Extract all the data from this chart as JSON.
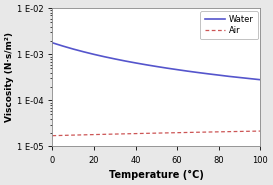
{
  "title": "",
  "xlabel": "Temperature (°C)",
  "ylabel": "Viscosity (N·s/m²)",
  "xlim": [
    0,
    100
  ],
  "ylim": [
    1e-05,
    0.01
  ],
  "xticks": [
    0,
    20,
    40,
    60,
    80,
    100
  ],
  "yticks": [
    1e-05,
    0.0001,
    0.001,
    0.01
  ],
  "ytick_labels": [
    "1 E-05",
    "1 E-04",
    "1 E-03",
    "1 E-02"
  ],
  "water_color": "#5555cc",
  "air_color": "#cc5555",
  "legend_labels": [
    "Water",
    "Air"
  ],
  "temp": [
    0,
    5,
    10,
    15,
    20,
    25,
    30,
    35,
    40,
    45,
    50,
    55,
    60,
    65,
    70,
    75,
    80,
    85,
    90,
    95,
    100
  ],
  "water_visc": [
    0.001787,
    0.001519,
    0.001307,
    0.001139,
    0.001002,
    0.00089,
    0.000798,
    0.000719,
    0.000653,
    0.000596,
    0.000547,
    0.000504,
    0.000467,
    0.000433,
    0.000404,
    0.000378,
    0.000355,
    0.000333,
    0.000315,
    0.000298,
    0.000282
  ],
  "air_visc": [
    1.716e-05,
    1.741e-05,
    1.767e-05,
    1.789e-05,
    1.813e-05,
    1.837e-05,
    1.86e-05,
    1.883e-05,
    1.905e-05,
    1.928e-05,
    1.95e-05,
    1.972e-05,
    1.994e-05,
    2.016e-05,
    2.038e-05,
    2.059e-05,
    2.08e-05,
    2.101e-05,
    2.121e-05,
    2.141e-05,
    2.161e-05
  ],
  "background_color": "#e8e8e8",
  "plot_bg": "#ffffff",
  "xlabel_fontsize": 7,
  "ylabel_fontsize": 6.5,
  "tick_fontsize": 6,
  "legend_fontsize": 6,
  "linewidth": 1.0,
  "water_linewidth": 1.2,
  "air_linewidth": 0.9
}
